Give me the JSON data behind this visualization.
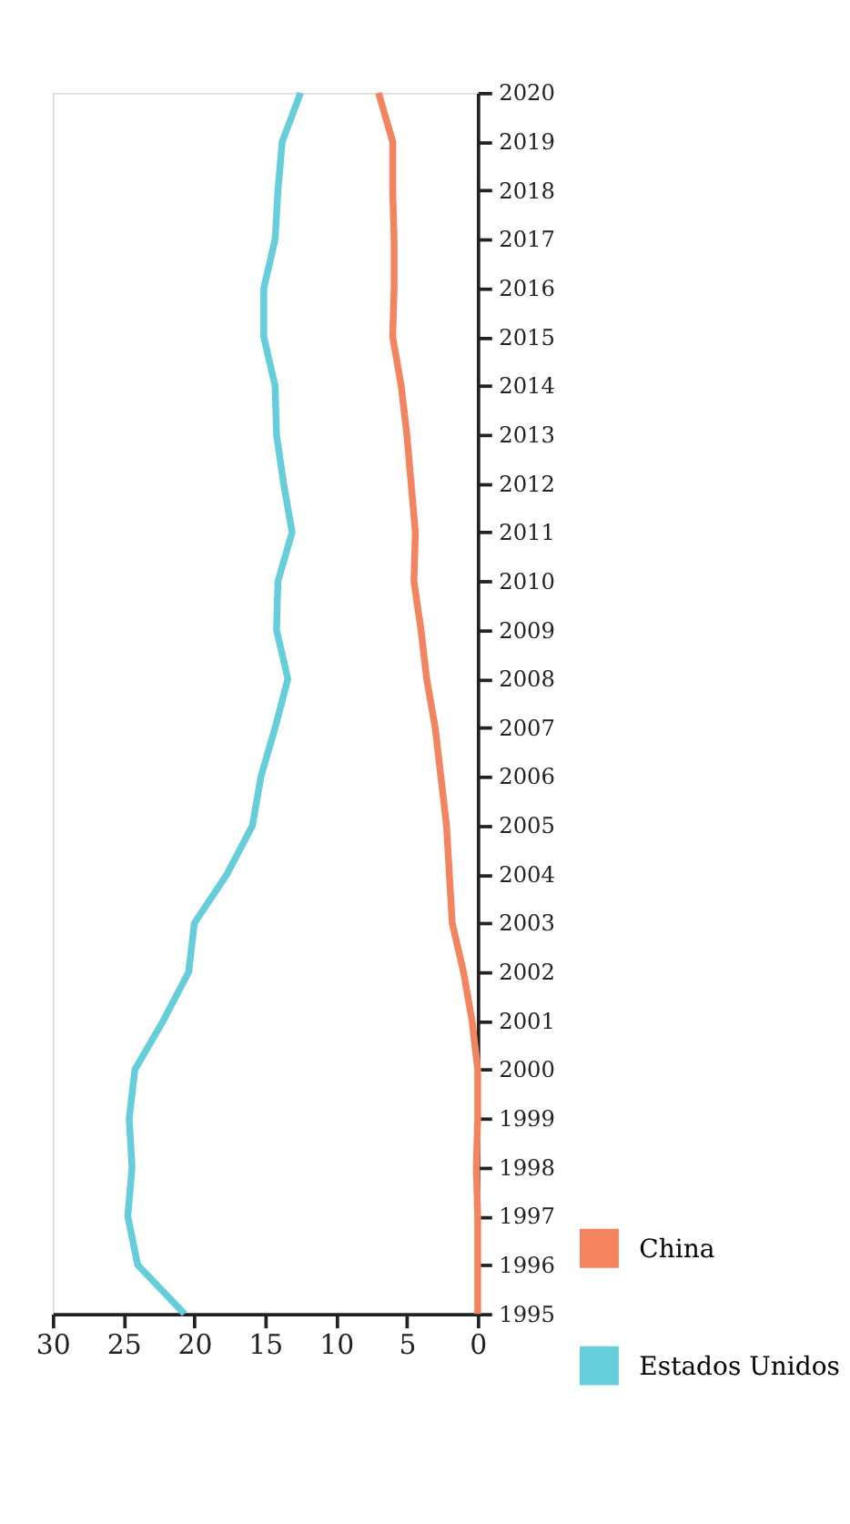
{
  "chart_data": {
    "type": "line",
    "series": [
      {
        "name": "China",
        "color": "#f4845f",
        "x": [
          0,
          0,
          0,
          0.1,
          0,
          0,
          0.4,
          1,
          1.8,
          2,
          2.2,
          2.6,
          3,
          3.6,
          4,
          4.5,
          4.4,
          4.7,
          5,
          5.4,
          6,
          5.9,
          5.9,
          6,
          6,
          7
        ],
        "values": [
          1995,
          1996,
          1997,
          1998,
          1999,
          2000,
          2001,
          2002,
          2003,
          2004,
          2005,
          2006,
          2007,
          2008,
          2009,
          2010,
          2011,
          2012,
          2013,
          2014,
          2015,
          2016,
          2017,
          2018,
          2019,
          2020
        ]
      },
      {
        "name": "Estados Unidos",
        "color": "#66cedb",
        "x": [
          20.7,
          24,
          24.7,
          24.4,
          24.6,
          24.2,
          22.2,
          20.4,
          20,
          17.7,
          15.9,
          15.3,
          14.3,
          13.4,
          14.2,
          14.1,
          13.1,
          13.7,
          14.2,
          14.3,
          15.1,
          15.1,
          14.3,
          14.1,
          13.8,
          12.5
        ],
        "values": [
          1995,
          1996,
          1997,
          1998,
          1999,
          2000,
          2001,
          2002,
          2003,
          2004,
          2005,
          2006,
          2007,
          2008,
          2009,
          2010,
          2011,
          2012,
          2013,
          2014,
          2015,
          2016,
          2017,
          2018,
          2019,
          2020
        ]
      }
    ],
    "xlim": [
      30,
      0
    ],
    "xticks": [
      30,
      25,
      20,
      15,
      10,
      5,
      0
    ],
    "ylim": [
      1995,
      2020
    ],
    "yticks": [
      1995,
      1996,
      1997,
      1998,
      1999,
      2000,
      2001,
      2002,
      2003,
      2004,
      2005,
      2006,
      2007,
      2008,
      2009,
      2010,
      2011,
      2012,
      2013,
      2014,
      2015,
      2016,
      2017,
      2018,
      2019,
      2020
    ],
    "grid": false,
    "legend": "bottom right",
    "line_style": "solid",
    "marker": "none"
  }
}
